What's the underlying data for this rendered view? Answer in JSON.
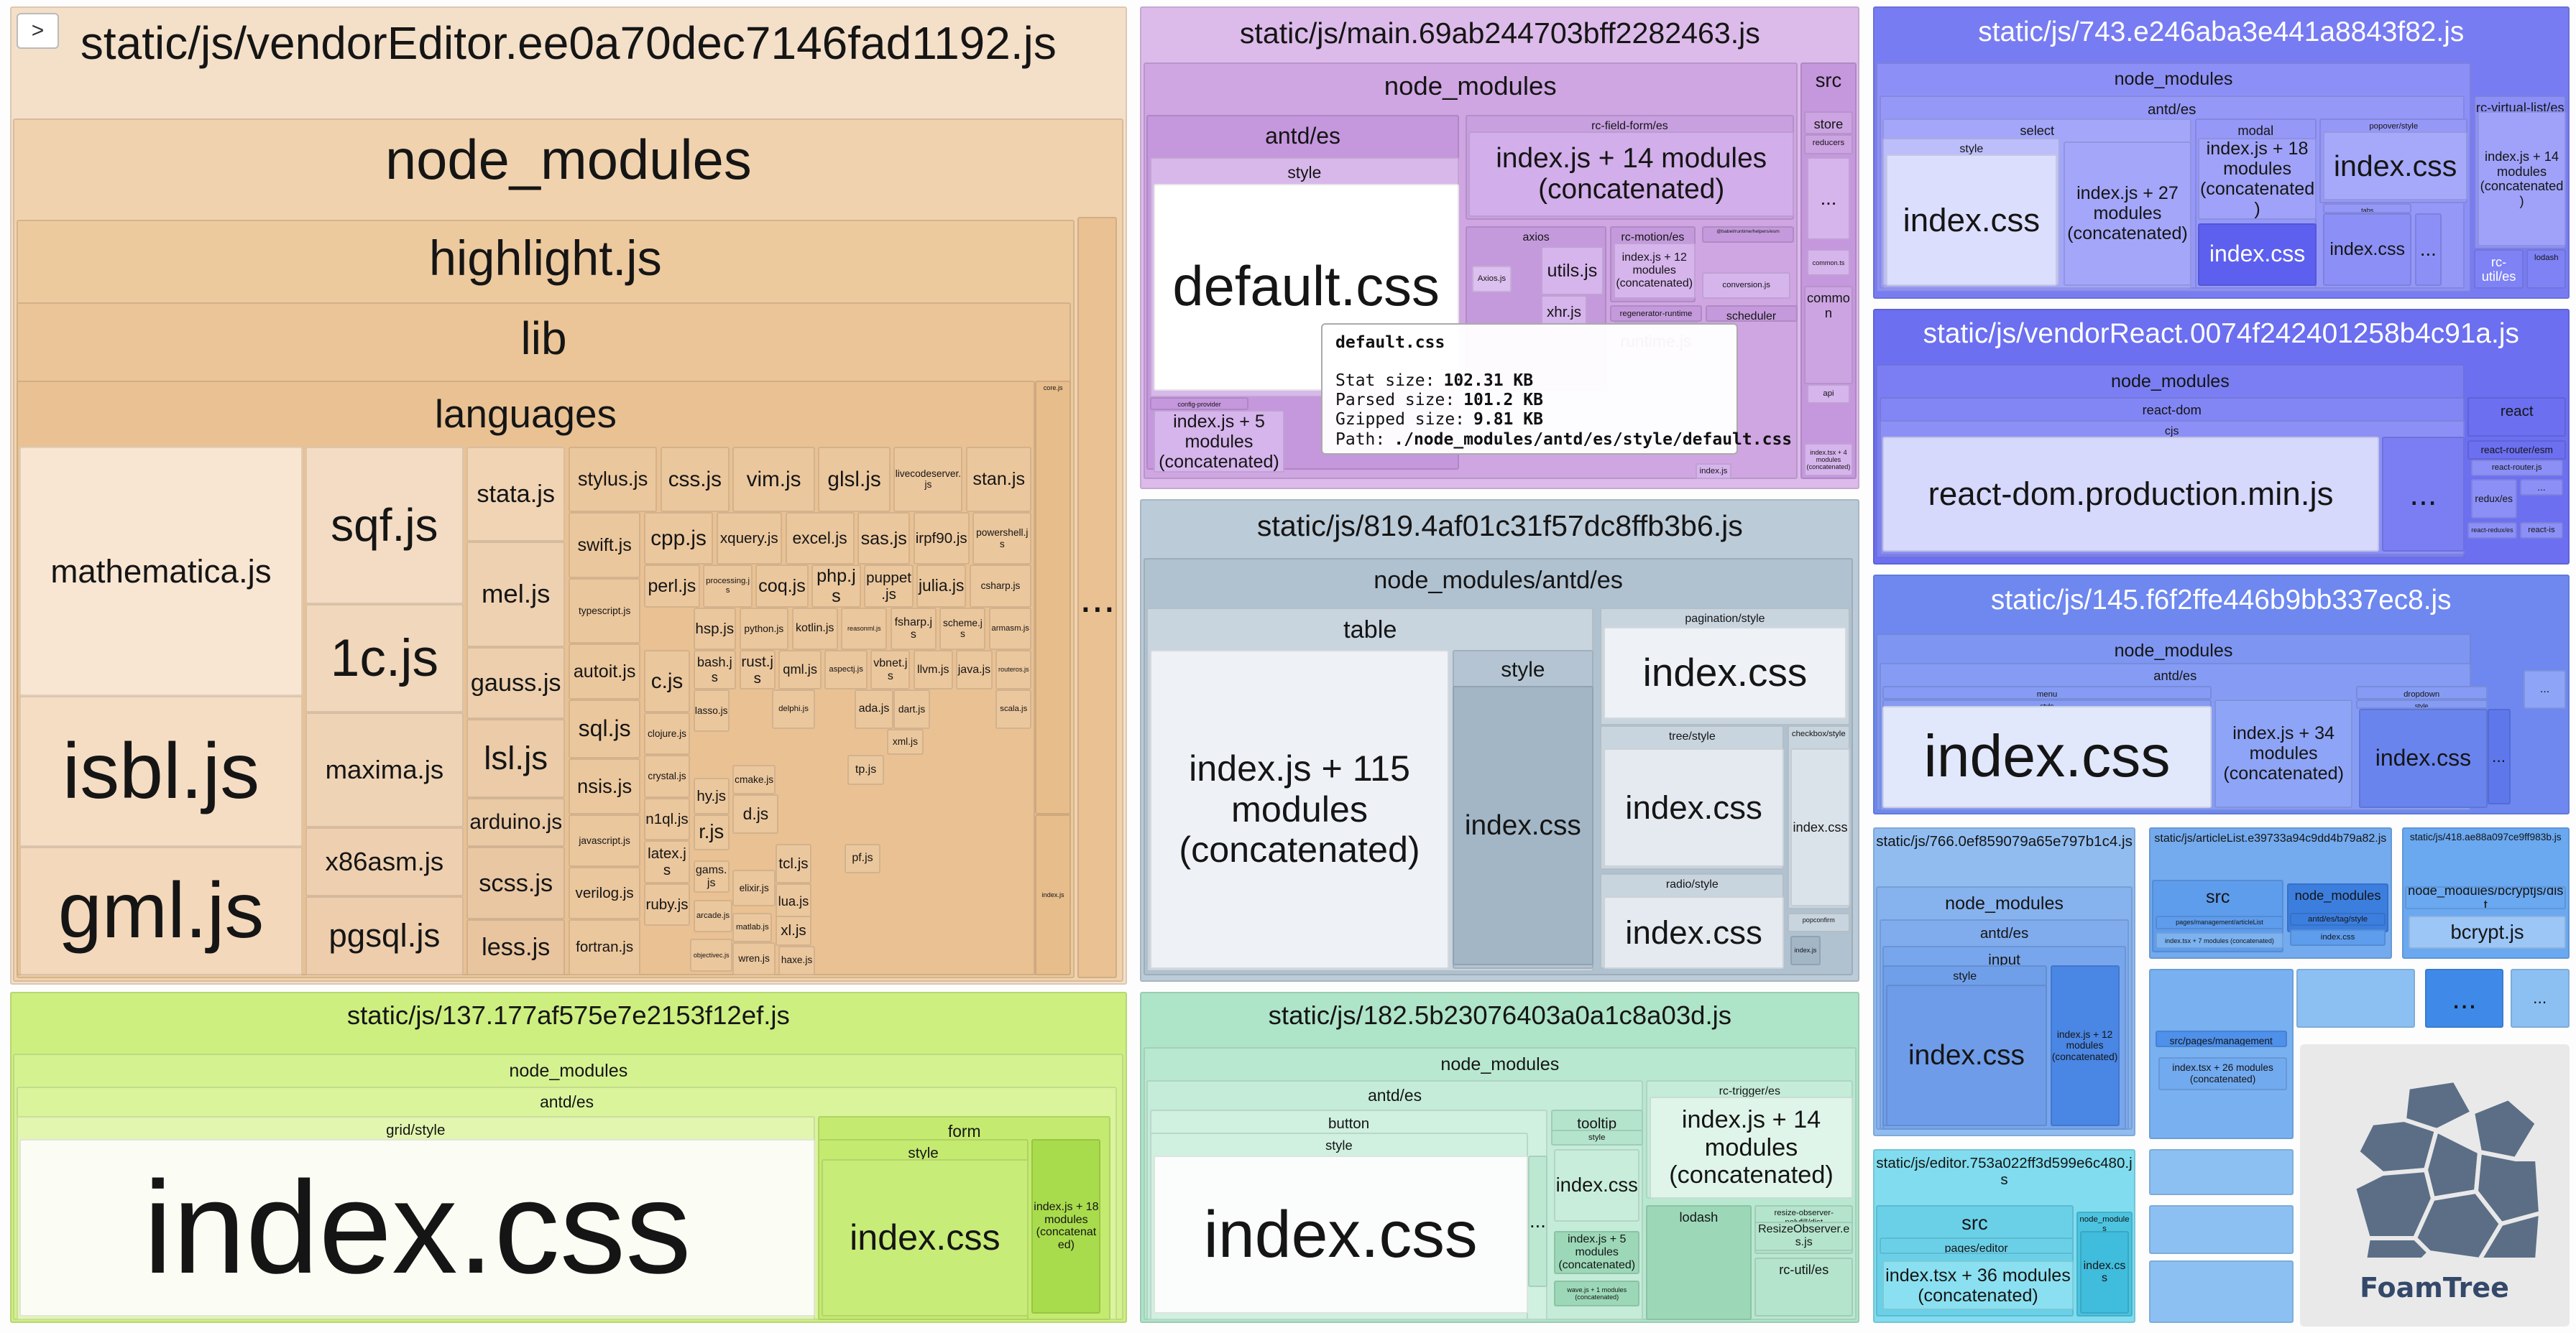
{
  "toggle_button": ">",
  "logo": "FoamTree",
  "tooltip": {
    "title": "default.css",
    "rows": [
      {
        "label": "Stat size:",
        "value": "102.31 KB"
      },
      {
        "label": "Parsed size:",
        "value": "101.2 KB"
      },
      {
        "label": "Gzipped size:",
        "value": "9.81 KB"
      },
      {
        "label": "Path:",
        "value": "./node_modules/antd/es/style/default.css"
      }
    ]
  },
  "cells": [
    {
      "label": "static/js/vendorEditor.ee0a70dec7146fad1192.js"
    },
    {
      "label": "node_modules"
    },
    {
      "label": "highlight.js"
    },
    {
      "label": "lib"
    },
    {
      "label": "languages"
    },
    {
      "label": "mathematica.js"
    },
    {
      "label": "isbl.js"
    },
    {
      "label": "gml.js"
    },
    {
      "label": "sqf.js"
    },
    {
      "label": "1c.js"
    },
    {
      "label": "maxima.js"
    },
    {
      "label": "x86asm.js"
    },
    {
      "label": "pgsql.js"
    },
    {
      "label": "stata.js"
    },
    {
      "label": "mel.js"
    },
    {
      "label": "gauss.js"
    },
    {
      "label": "lsl.js"
    },
    {
      "label": "arduino.js"
    },
    {
      "label": "scss.js"
    },
    {
      "label": "less.js"
    },
    {
      "label": "stylus.js"
    },
    {
      "label": "swift.js"
    },
    {
      "label": "typescript.js"
    },
    {
      "label": "autoit.js"
    },
    {
      "label": "sql.js"
    },
    {
      "label": "nsis.js"
    },
    {
      "label": "javascript.js"
    },
    {
      "label": "verilog.js"
    },
    {
      "label": "fortran.js"
    },
    {
      "label": "css.js"
    },
    {
      "label": "vim.js"
    },
    {
      "label": "glsl.js"
    },
    {
      "label": "livecodeserver.js"
    },
    {
      "label": "stan.js"
    },
    {
      "label": "cpp.js"
    },
    {
      "label": "xquery.js"
    },
    {
      "label": "excel.js"
    },
    {
      "label": "sas.js"
    },
    {
      "label": "irpf90.js"
    },
    {
      "label": "powershell.js"
    },
    {
      "label": "perl.js"
    },
    {
      "label": "processing.js"
    },
    {
      "label": "coq.js"
    },
    {
      "label": "php.js"
    },
    {
      "label": "puppet.js"
    },
    {
      "label": "julia.js"
    },
    {
      "label": "csharp.js"
    },
    {
      "label": "hsp.js"
    },
    {
      "label": "python.js"
    },
    {
      "label": "kotlin.js"
    },
    {
      "label": "reasonml.js"
    },
    {
      "label": "fsharp.js"
    },
    {
      "label": "scheme.js"
    },
    {
      "label": "armasm.js"
    },
    {
      "label": "c.js"
    },
    {
      "label": "bash.js"
    },
    {
      "label": "rust.js"
    },
    {
      "label": "qml.js"
    },
    {
      "label": "aspectj.js"
    },
    {
      "label": "vbnet.js"
    },
    {
      "label": "llvm.js"
    },
    {
      "label": "java.js"
    },
    {
      "label": "routeros.js"
    },
    {
      "label": "clojure.js"
    },
    {
      "label": "lasso.js"
    },
    {
      "label": "delphi.js"
    },
    {
      "label": "ada.js"
    },
    {
      "label": "dart.js"
    },
    {
      "label": "scala.js"
    },
    {
      "label": "crystal.js"
    },
    {
      "label": "cmake.js"
    },
    {
      "label": "tp.js"
    },
    {
      "label": "hy.js"
    },
    {
      "label": "d.js"
    },
    {
      "label": "xml.js"
    },
    {
      "label": "n1ql.js"
    },
    {
      "label": "r.js"
    },
    {
      "label": "latex.js"
    },
    {
      "label": "tcl.js"
    },
    {
      "label": "pf.js"
    },
    {
      "label": "elixir.js"
    },
    {
      "label": "gams.js"
    },
    {
      "label": "ruby.js"
    },
    {
      "label": "lua.js"
    },
    {
      "label": "arcade.js"
    },
    {
      "label": "matlab.js"
    },
    {
      "label": "xl.js"
    },
    {
      "label": "objectivec.js"
    },
    {
      "label": "wren.js"
    },
    {
      "label": "haxe.js"
    },
    {
      "label": "core.js"
    },
    {
      "label": "index.js"
    },
    {
      "label": "..."
    },
    {
      "label": "static/js/main.69ab244703bff2282463.js"
    },
    {
      "label": "node_modules"
    },
    {
      "label": "antd/es"
    },
    {
      "label": "style"
    },
    {
      "label": "default.css"
    },
    {
      "label": "config-provider"
    },
    {
      "label": "index.js + 5 modules (concatenated)"
    },
    {
      "label": "rc-field-form/es"
    },
    {
      "label": "index.js + 14 modules (concatenated)"
    },
    {
      "label": "axios"
    },
    {
      "label": "Axios.js"
    },
    {
      "label": "utils.js"
    },
    {
      "label": "xhr.js"
    },
    {
      "label": "rc-motion/es"
    },
    {
      "label": "index.js + 12 modules (concatenated)"
    },
    {
      "label": "conversion.js"
    },
    {
      "label": "regenerator-runtime"
    },
    {
      "label": "runtime.js"
    },
    {
      "label": "scheduler"
    },
    {
      "label": "@babel/runtime/helpers/esm"
    },
    {
      "label": "index.js"
    },
    {
      "label": "src"
    },
    {
      "label": "store"
    },
    {
      "label": "reducers"
    },
    {
      "label": "..."
    },
    {
      "label": "common.ts"
    },
    {
      "label": "common"
    },
    {
      "label": "api"
    },
    {
      "label": "index.tsx + 4 modules (concatenated)"
    },
    {
      "label": "static/js/743.e246aba3e441a8843f82.js"
    },
    {
      "label": "node_modules"
    },
    {
      "label": "antd/es"
    },
    {
      "label": "select"
    },
    {
      "label": "style"
    },
    {
      "label": "index.css"
    },
    {
      "label": "index.js + 27 modules (concatenated)"
    },
    {
      "label": "modal"
    },
    {
      "label": "index.js + 18 modules (concatenated)"
    },
    {
      "label": "index.css"
    },
    {
      "label": "popover/style"
    },
    {
      "label": "index.css"
    },
    {
      "label": "tabs"
    },
    {
      "label": "index.css"
    },
    {
      "label": "..."
    },
    {
      "label": "rc-virtual-list/es"
    },
    {
      "label": "index.js + 14 modules (concatenated)"
    },
    {
      "label": "rc-util/es"
    },
    {
      "label": "lodash"
    },
    {
      "label": "static/js/vendorReact.0074f242401258b4c91a.js"
    },
    {
      "label": "node_modules"
    },
    {
      "label": "react-dom"
    },
    {
      "label": "cjs"
    },
    {
      "label": "react-dom.production.min.js"
    },
    {
      "label": "..."
    },
    {
      "label": "react"
    },
    {
      "label": "react-router/esm"
    },
    {
      "label": "react-router.js"
    },
    {
      "label": "redux/es"
    },
    {
      "label": "..."
    },
    {
      "label": "react-redux/es"
    },
    {
      "label": "react-is"
    },
    {
      "label": "static/js/145.f6f2ffe446b9bb337ec8.js"
    },
    {
      "label": "node_modules"
    },
    {
      "label": "antd/es"
    },
    {
      "label": "menu"
    },
    {
      "label": "style"
    },
    {
      "label": "index.css"
    },
    {
      "label": "index.js + 34 modules (concatenated)"
    },
    {
      "label": "dropdown"
    },
    {
      "label": "style"
    },
    {
      "label": "index.css"
    },
    {
      "label": "..."
    },
    {
      "label": "..."
    },
    {
      "label": "static/js/766.0ef859079a65e797b1c4.js"
    },
    {
      "label": "node_modules"
    },
    {
      "label": "antd/es"
    },
    {
      "label": "input"
    },
    {
      "label": "style"
    },
    {
      "label": "index.css"
    },
    {
      "label": "index.js + 12 modules (concatenated)"
    },
    {
      "label": "static/js/articleList.e39733a94c9dd4b79a82.js"
    },
    {
      "label": "src"
    },
    {
      "label": "pages/management/articleList"
    },
    {
      "label": "index.tsx + 7 modules (concatenated)"
    },
    {
      "label": "node_modules"
    },
    {
      "label": "antd/es/tag/style"
    },
    {
      "label": "index.css"
    },
    {
      "label": "static/js/418.ae88a097ce9ff983b.js"
    },
    {
      "label": "node_modules/bcryptjs/dist"
    },
    {
      "label": "bcrypt.js"
    },
    {
      "label": "static/js/editor.753a022ff3d599e6c480.js"
    },
    {
      "label": "src"
    },
    {
      "label": "pages/editor"
    },
    {
      "label": "index.tsx + 36 modules (concatenated)"
    },
    {
      "label": "node_modules"
    },
    {
      "label": "index.css"
    },
    {
      "label": "src/pages/management"
    },
    {
      "label": "index.tsx + 26 modules (concatenated)"
    },
    {
      "label": "..."
    },
    {
      "label": "..."
    },
    {
      "label": "static/js/819.4af01c31f57dc8ffb3b6.js"
    },
    {
      "label": "node_modules/antd/es"
    },
    {
      "label": "table"
    },
    {
      "label": "index.js + 115 modules (concatenated)"
    },
    {
      "label": "style"
    },
    {
      "label": "index.css"
    },
    {
      "label": "pagination/style"
    },
    {
      "label": "index.css"
    },
    {
      "label": "tree/style"
    },
    {
      "label": "index.css"
    },
    {
      "label": "radio/style"
    },
    {
      "label": "index.css"
    },
    {
      "label": "checkbox/style"
    },
    {
      "label": "index.css"
    },
    {
      "label": "popconfirm"
    },
    {
      "label": "index.js"
    },
    {
      "label": "static/js/137.177af575e7e2153f12ef.js"
    },
    {
      "label": "node_modules"
    },
    {
      "label": "antd/es"
    },
    {
      "label": "grid/style"
    },
    {
      "label": "index.css"
    },
    {
      "label": "form"
    },
    {
      "label": "style"
    },
    {
      "label": "index.css"
    },
    {
      "label": "index.js + 18 modules (concatenated)"
    },
    {
      "label": "static/js/182.5b23076403a0a1c8a03d.js"
    },
    {
      "label": "node_modules"
    },
    {
      "label": "antd/es"
    },
    {
      "label": "button"
    },
    {
      "label": "style"
    },
    {
      "label": "index.css"
    },
    {
      "label": "..."
    },
    {
      "label": "tooltip"
    },
    {
      "label": "style"
    },
    {
      "label": "index.css"
    },
    {
      "label": "index.js + 5 modules (concatenated)"
    },
    {
      "label": "wave.js + 1 modules (concatenated)"
    },
    {
      "label": "rc-trigger/es"
    },
    {
      "label": "index.js + 14 modules (concatenated)"
    },
    {
      "label": "lodash"
    },
    {
      "label": "resize-observer-polyfill/dist"
    },
    {
      "label": "ResizeObserver.es.js"
    },
    {
      "label": "rc-util/es"
    }
  ]
}
